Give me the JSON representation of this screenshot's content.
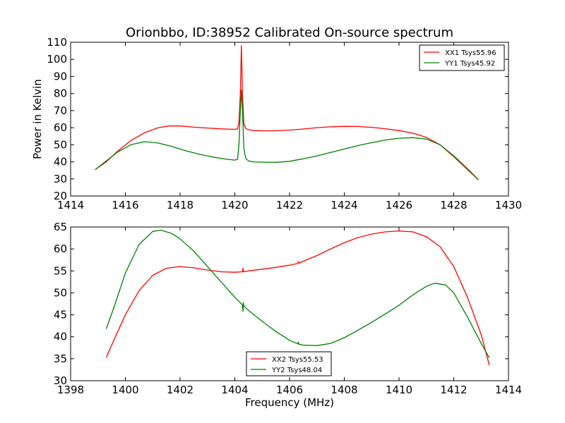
{
  "figure": {
    "title": "Orionbbo, ID:38952 Calibrated On-source spectrum"
  },
  "chart_data": [
    {
      "type": "line",
      "title": "Orionbbo, ID:38952 Calibrated On-source spectrum",
      "xlabel": "",
      "ylabel": "Power in Kelvin",
      "xlim": [
        1414,
        1430
      ],
      "ylim": [
        20,
        110
      ],
      "xticks": [
        1414,
        1416,
        1418,
        1420,
        1422,
        1424,
        1426,
        1428,
        1430
      ],
      "yticks": [
        20,
        30,
        40,
        50,
        60,
        70,
        80,
        90,
        100,
        110
      ],
      "grid": false,
      "legend": "top-right",
      "series": [
        {
          "name": "XX1 Tsys55.96",
          "color": "#ff0000",
          "points": [
            [
              1414.9,
              35.5
            ],
            [
              1415.3,
              40
            ],
            [
              1415.7,
              46
            ],
            [
              1416.2,
              52.5
            ],
            [
              1416.7,
              57
            ],
            [
              1417.2,
              60
            ],
            [
              1417.6,
              61
            ],
            [
              1418.0,
              61
            ],
            [
              1418.5,
              60.3
            ],
            [
              1419.0,
              59.8
            ],
            [
              1419.5,
              59.3
            ],
            [
              1420.0,
              59
            ],
            [
              1420.1,
              59.3
            ],
            [
              1420.15,
              63
            ],
            [
              1420.2,
              80
            ],
            [
              1420.24,
              108
            ],
            [
              1420.28,
              80
            ],
            [
              1420.33,
              62
            ],
            [
              1420.4,
              59.5
            ],
            [
              1420.5,
              58.8
            ],
            [
              1420.7,
              58.3
            ],
            [
              1421.0,
              58.2
            ],
            [
              1421.5,
              58.2
            ],
            [
              1422.0,
              58.6
            ],
            [
              1422.5,
              59.2
            ],
            [
              1423.0,
              60
            ],
            [
              1423.5,
              60.5
            ],
            [
              1424.0,
              60.8
            ],
            [
              1424.5,
              60.7
            ],
            [
              1425.0,
              60.2
            ],
            [
              1425.5,
              59.4
            ],
            [
              1426.0,
              58.3
            ],
            [
              1426.5,
              56.8
            ],
            [
              1427.0,
              54.3
            ],
            [
              1427.5,
              50
            ],
            [
              1428.0,
              43
            ],
            [
              1428.5,
              35.5
            ],
            [
              1428.9,
              29.5
            ]
          ]
        },
        {
          "name": "YY1 Tsys45.92",
          "color": "#008000",
          "points": [
            [
              1414.9,
              35.5
            ],
            [
              1415.3,
              40.5
            ],
            [
              1415.7,
              45.5
            ],
            [
              1416.2,
              50
            ],
            [
              1416.7,
              51.8
            ],
            [
              1417.2,
              51
            ],
            [
              1417.7,
              49
            ],
            [
              1418.2,
              46.5
            ],
            [
              1418.7,
              44.5
            ],
            [
              1419.2,
              42.8
            ],
            [
              1419.7,
              41.5
            ],
            [
              1420.0,
              41
            ],
            [
              1420.1,
              41.5
            ],
            [
              1420.15,
              50
            ],
            [
              1420.2,
              70
            ],
            [
              1420.24,
              82
            ],
            [
              1420.28,
              70
            ],
            [
              1420.33,
              48
            ],
            [
              1420.4,
              42
            ],
            [
              1420.5,
              40.5
            ],
            [
              1420.7,
              40
            ],
            [
              1421.0,
              39.8
            ],
            [
              1421.5,
              39.7
            ],
            [
              1422.0,
              40.3
            ],
            [
              1422.5,
              41.8
            ],
            [
              1423.0,
              43.5
            ],
            [
              1423.5,
              45.5
            ],
            [
              1424.0,
              47.5
            ],
            [
              1424.5,
              49.5
            ],
            [
              1425.0,
              51.2
            ],
            [
              1425.5,
              52.8
            ],
            [
              1426.0,
              53.8
            ],
            [
              1426.5,
              54.2
            ],
            [
              1427.0,
              53.3
            ],
            [
              1427.5,
              50
            ],
            [
              1428.0,
              43.5
            ],
            [
              1428.5,
              36
            ],
            [
              1428.9,
              29.5
            ]
          ]
        }
      ]
    },
    {
      "type": "line",
      "title": "",
      "xlabel": "Frequency (MHz)",
      "ylabel": "",
      "xlim": [
        1398,
        1414
      ],
      "ylim": [
        30,
        65
      ],
      "xticks": [
        1398,
        1400,
        1402,
        1404,
        1406,
        1408,
        1410,
        1412,
        1414
      ],
      "yticks": [
        30,
        35,
        40,
        45,
        50,
        55,
        60,
        65
      ],
      "grid": false,
      "legend": "bottom-center",
      "series": [
        {
          "name": "XX2 Tsys55.53",
          "color": "#ff0000",
          "points": [
            [
              1399.3,
              35.3
            ],
            [
              1399.6,
              39.5
            ],
            [
              1400.0,
              45
            ],
            [
              1400.5,
              50.5
            ],
            [
              1401.0,
              54
            ],
            [
              1401.5,
              55.6
            ],
            [
              1402.0,
              56
            ],
            [
              1402.5,
              55.7
            ],
            [
              1403.0,
              55.2
            ],
            [
              1403.5,
              54.8
            ],
            [
              1404.0,
              54.7
            ],
            [
              1404.28,
              54.8
            ],
            [
              1404.3,
              55.6
            ],
            [
              1404.32,
              54.8
            ],
            [
              1404.5,
              55
            ],
            [
              1405.0,
              55.4
            ],
            [
              1405.5,
              55.8
            ],
            [
              1406.0,
              56.3
            ],
            [
              1406.3,
              56.7
            ],
            [
              1406.32,
              57.1
            ],
            [
              1406.35,
              56.8
            ],
            [
              1406.5,
              57.2
            ],
            [
              1407.0,
              58.5
            ],
            [
              1407.5,
              60
            ],
            [
              1408.0,
              61.4
            ],
            [
              1408.5,
              62.6
            ],
            [
              1409.0,
              63.4
            ],
            [
              1409.5,
              63.9
            ],
            [
              1410.0,
              64.1
            ],
            [
              1410.5,
              63.9
            ],
            [
              1411.0,
              62.8
            ],
            [
              1411.5,
              60.5
            ],
            [
              1412.0,
              56
            ],
            [
              1412.5,
              49
            ],
            [
              1413.0,
              40.5
            ],
            [
              1413.3,
              33.5
            ]
          ]
        },
        {
          "name": "YY2 Tsys48.04",
          "color": "#008000",
          "points": [
            [
              1399.3,
              41.8
            ],
            [
              1399.6,
              47
            ],
            [
              1400.0,
              54.5
            ],
            [
              1400.5,
              61
            ],
            [
              1401.0,
              64
            ],
            [
              1401.3,
              64.3
            ],
            [
              1401.7,
              63.5
            ],
            [
              1402.0,
              62.3
            ],
            [
              1402.5,
              59.5
            ],
            [
              1403.0,
              56
            ],
            [
              1403.5,
              52.5
            ],
            [
              1404.0,
              49
            ],
            [
              1404.27,
              47.3
            ],
            [
              1404.3,
              45.8
            ],
            [
              1404.31,
              47.8
            ],
            [
              1404.33,
              47
            ],
            [
              1404.5,
              46
            ],
            [
              1405.0,
              43.5
            ],
            [
              1405.5,
              41.2
            ],
            [
              1406.0,
              39.2
            ],
            [
              1406.3,
              38.4
            ],
            [
              1406.32,
              38.8
            ],
            [
              1406.34,
              38.3
            ],
            [
              1406.5,
              38.1
            ],
            [
              1407.0,
              38
            ],
            [
              1407.5,
              38.5
            ],
            [
              1408.0,
              39.8
            ],
            [
              1408.5,
              41.5
            ],
            [
              1409.0,
              43.3
            ],
            [
              1409.5,
              45.2
            ],
            [
              1410.0,
              47.2
            ],
            [
              1410.5,
              49.5
            ],
            [
              1411.0,
              51.5
            ],
            [
              1411.3,
              52.2
            ],
            [
              1411.7,
              51.8
            ],
            [
              1412.0,
              50
            ],
            [
              1412.5,
              44.5
            ],
            [
              1413.0,
              38.5
            ],
            [
              1413.3,
              35.2
            ]
          ]
        }
      ]
    }
  ]
}
